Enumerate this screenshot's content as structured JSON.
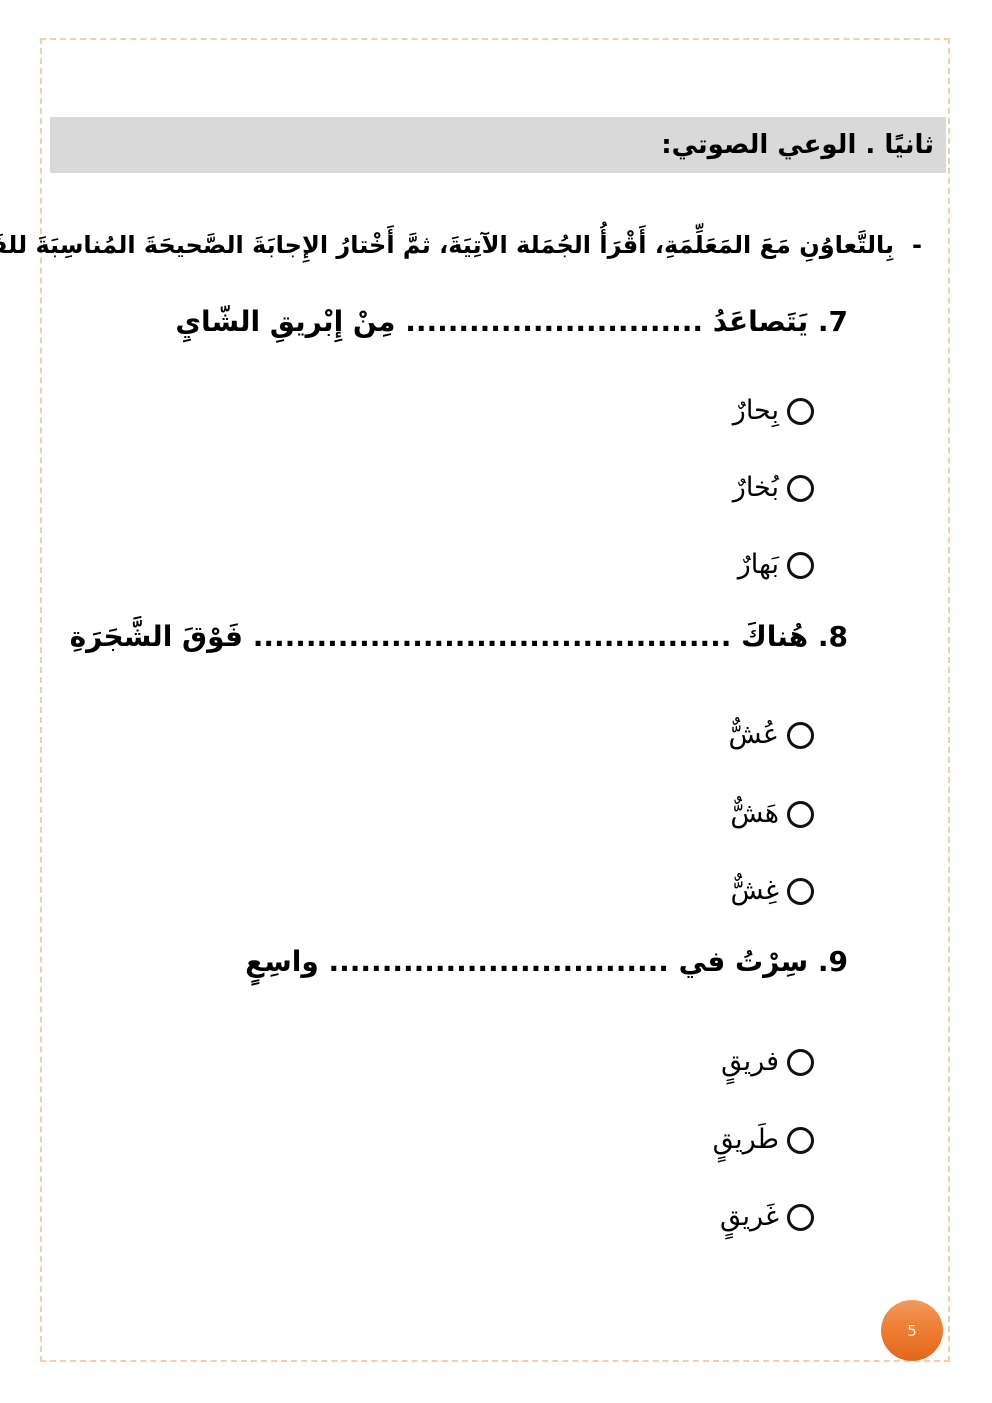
{
  "colors": {
    "page_border": "#f6ccaa",
    "header_bg": "#d9d9d9",
    "badge_orange": "#ed7d31",
    "badge_orange_light": "#f29a5c",
    "badge_orange_dark": "#e2661a"
  },
  "header": {
    "title": "ثانيًا . الوعي الصوتي:"
  },
  "instruction": {
    "dash": "-",
    "text": "بِالتَّعاوُنِ مَعَ المَعَلِّمَةِ، أَقْرَأُ الجُمَلة الآتِيَةَ، ثمَّ أَخْتارُ الإِجابَةَ الصَّحيحَةَ المُناسِبَةَ للفَراغِ:"
  },
  "questions": [
    {
      "number": "7",
      "text": "7. يَتَصاعَدُ ............................ مِنْ إِبْريقِ الشّايِ",
      "options": [
        "بِحارٌ",
        "بُخارٌ",
        "بَهارٌ"
      ]
    },
    {
      "number": "8",
      "text": "8. هُناكَ ............................................. فَوْقَ الشَّجَرَةِ",
      "options": [
        "عُشٌّ",
        "هَشٌّ",
        "غِشٌّ"
      ]
    },
    {
      "number": "9",
      "text": "9. سِرْتُ في ................................ واسِعٍ",
      "options": [
        "فريقٍ",
        "طَريقٍ",
        "غَريقٍ"
      ]
    }
  ],
  "page": {
    "number": "5"
  }
}
